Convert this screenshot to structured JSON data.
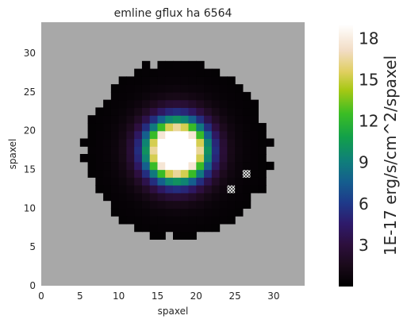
{
  "chart_data": {
    "type": "heatmap",
    "title": "emline gflux ha 6564",
    "xlabel": "spaxel",
    "ylabel": "spaxel",
    "xlim": [
      0,
      34
    ],
    "ylim": [
      0,
      34
    ],
    "x_ticks": [
      0,
      5,
      10,
      15,
      20,
      25,
      30
    ],
    "y_ticks": [
      0,
      5,
      10,
      15,
      20,
      25,
      30
    ],
    "x_tick_labels": [
      "0",
      "5",
      "10",
      "15",
      "20",
      "25",
      "30"
    ],
    "y_tick_labels": [
      "0",
      "5",
      "10",
      "15",
      "20",
      "25",
      "30"
    ],
    "grid": false,
    "background_color": "#a8a8a8",
    "colormap": "cubehelix-like (black → purple → blue → green → yellow → white)",
    "colorbar": {
      "label": "1E-17 erg/s/cm^2/spaxel",
      "range": [
        0,
        19
      ],
      "ticks": [
        3,
        6,
        9,
        12,
        15,
        18
      ],
      "tick_labels": [
        "3",
        "6",
        "9",
        "12",
        "15",
        "18"
      ]
    },
    "emission_peak": {
      "x": 17.5,
      "y": 17.5,
      "max_value": 19
    },
    "masked_spaxels": [
      [
        26,
        14
      ],
      [
        24,
        12
      ]
    ]
  }
}
